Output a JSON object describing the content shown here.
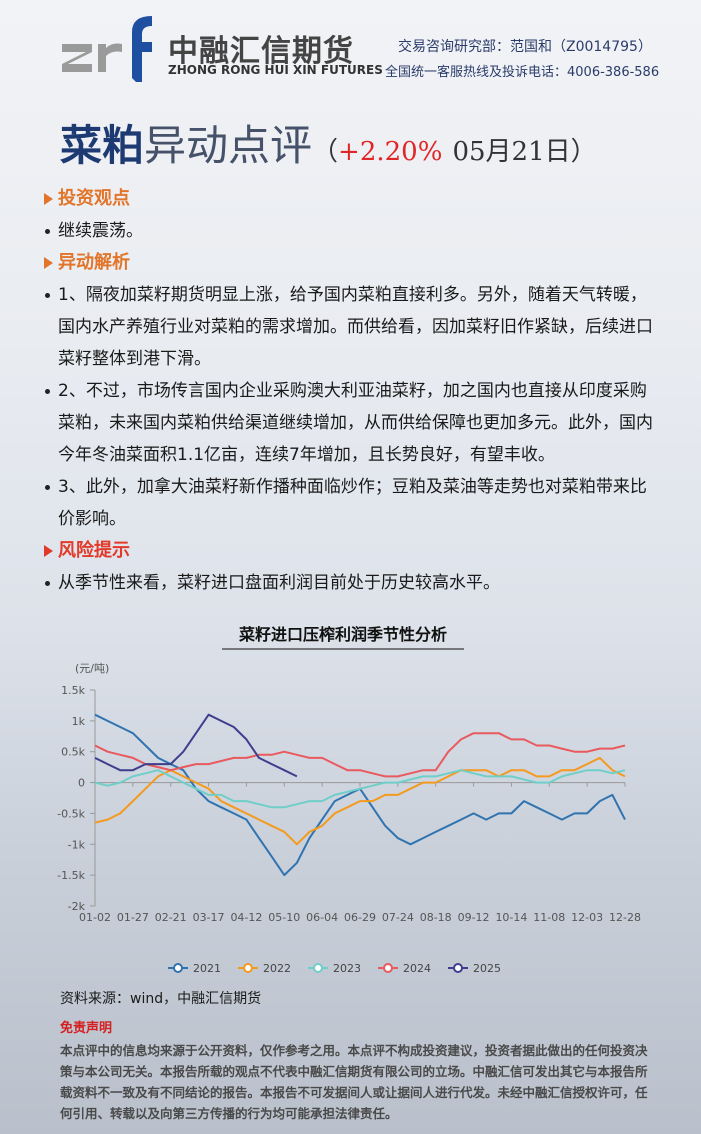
{
  "header": {
    "company_cn": "中融汇信期货",
    "company_en": "ZHONG RONG HUI XIN FUTURES",
    "analyst": "交易咨询研究部：范国和（Z0014795）",
    "hotline": "全国统一客服热线及投诉电话：4006-386-586"
  },
  "title": {
    "product": "菜粕",
    "kind": "异动点评",
    "open_paren": "（",
    "change": "+2.20%",
    "date": "05月21日",
    "close_paren": "）"
  },
  "sections": [
    {
      "heading": "投资观点",
      "items": [
        "继续震荡。"
      ]
    },
    {
      "heading": "异动解析",
      "items": [
        "1、隔夜加菜籽期货明显上涨，给予国内菜粕直接利多。另外，随着天气转暖，国内水产养殖行业对菜粕的需求增加。而供给看，因加菜籽旧作紧缺，后续进口菜籽整体到港下滑。",
        "2、不过，市场传言国内企业采购澳大利亚油菜籽，加之国内也直接从印度采购菜粕，未来国内菜粕供给渠道继续增加，从而供给保障也更加多元。此外，国内今年冬油菜面积1.1亿亩，连续7年增加，且长势良好，有望丰收。",
        "3、此外，加拿大油菜籽新作播种面临炒作；豆粕及菜油等走势也对菜粕带来比价影响。"
      ]
    },
    {
      "heading": "风险提示",
      "items": [
        "从季节性来看，菜籽进口盘面利润目前处于历史较高水平。"
      ]
    }
  ],
  "chart_data": {
    "type": "line",
    "title": "菜籽进口压榨利润季节性分析",
    "y_axis_label": "(元/吨)",
    "categories": [
      "01-02",
      null,
      null,
      "01-27",
      null,
      null,
      "02-21",
      null,
      null,
      "03-17",
      null,
      null,
      "04-12",
      null,
      null,
      "05-10",
      null,
      null,
      "06-04",
      null,
      null,
      "06-29",
      null,
      null,
      "07-24",
      null,
      null,
      "08-18",
      null,
      null,
      "09-12",
      null,
      null,
      "10-14",
      null,
      null,
      "11-08",
      null,
      null,
      "12-03",
      null,
      null,
      "12-28"
    ],
    "ylim": [
      -2000,
      1500
    ],
    "yticks": [
      {
        "value": -2000,
        "label": "-2k"
      },
      {
        "value": -1500,
        "label": "-1.5k"
      },
      {
        "value": -1000,
        "label": "-1k"
      },
      {
        "value": -500,
        "label": "-0.5k"
      },
      0,
      {
        "value": 500,
        "label": "0.5k"
      },
      {
        "value": 1000,
        "label": "1k"
      },
      {
        "value": 1500,
        "label": "1.5k"
      }
    ],
    "grid": false,
    "legend": "bottom",
    "series": [
      {
        "name": "2021",
        "color": "#2f73b0",
        "values": [
          1100,
          1000,
          900,
          800,
          600,
          400,
          300,
          200,
          -100,
          -300,
          -400,
          -500,
          -600,
          -900,
          -1200,
          -1500,
          -1300,
          -900,
          -600,
          -300,
          -200,
          -100,
          -400,
          -700,
          -900,
          -1000,
          -900,
          -800,
          -700,
          -600,
          -500,
          -600,
          -500,
          -500,
          -300,
          -400,
          -500,
          -600,
          -500,
          -500,
          -300,
          -200,
          -600
        ]
      },
      {
        "name": "2022",
        "color": "#f39a1f",
        "values": [
          -650,
          -600,
          -500,
          -300,
          -100,
          100,
          200,
          100,
          0,
          -100,
          -300,
          -400,
          -500,
          -600,
          -700,
          -800,
          -1000,
          -800,
          -700,
          -500,
          -400,
          -300,
          -300,
          -200,
          -200,
          -100,
          0,
          0,
          100,
          200,
          200,
          200,
          100,
          200,
          200,
          100,
          100,
          200,
          200,
          300,
          400,
          200,
          100
        ]
      },
      {
        "name": "2023",
        "color": "#6fcfc8",
        "values": [
          0,
          -50,
          0,
          100,
          150,
          200,
          100,
          0,
          -100,
          -200,
          -200,
          -300,
          -300,
          -350,
          -400,
          -400,
          -350,
          -300,
          -300,
          -200,
          -150,
          -100,
          -50,
          0,
          0,
          50,
          100,
          100,
          150,
          200,
          150,
          100,
          100,
          100,
          50,
          0,
          0,
          100,
          150,
          200,
          200,
          150,
          200
        ]
      },
      {
        "name": "2024",
        "color": "#e85a5e",
        "values": [
          600,
          500,
          450,
          400,
          300,
          250,
          200,
          250,
          300,
          300,
          350,
          400,
          400,
          450,
          450,
          500,
          450,
          400,
          400,
          300,
          200,
          200,
          150,
          100,
          100,
          150,
          200,
          200,
          500,
          700,
          800,
          800,
          800,
          700,
          700,
          600,
          600,
          550,
          500,
          500,
          550,
          550,
          600
        ]
      },
      {
        "name": "2025",
        "color": "#3d3f8e",
        "values": [
          400,
          300,
          200,
          200,
          300,
          300,
          300,
          500,
          800,
          1100,
          1000,
          900,
          700,
          400,
          300,
          200,
          100,
          null,
          null,
          null,
          null,
          null,
          null,
          null,
          null,
          null,
          null,
          null,
          null,
          null,
          null,
          null,
          null,
          null,
          null,
          null,
          null,
          null,
          null,
          null,
          null,
          null,
          null
        ]
      }
    ]
  },
  "source": "资料来源：wind，中融汇信期货",
  "disclaimer": {
    "title": "免责声明",
    "text": "本点评中的信息均来源于公开资料，仅作参考之用。本点评不构成投资建议，投资者据此做出的任何投资决策与本公司无关。本报告所载的观点不代表中融汇信期货有限公司的立场。中融汇信可发出其它与本报告所载资料不一致及有不同结论的报告。本报告不可发据间人或让据间人进行代发。未经中融汇信授权许可，任何引用、转载以及向第三方传播的行为均可能承担法律责任。"
  }
}
